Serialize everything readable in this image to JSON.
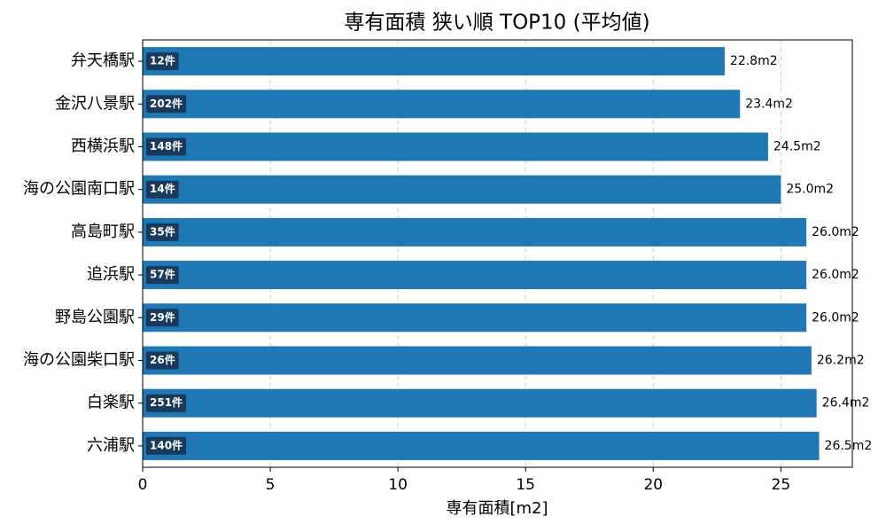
{
  "chart_data": {
    "type": "barh",
    "title": "専有面積 狭い順 TOP10 (平均値)",
    "x_label": "専有面積[m2]",
    "categories": [
      "弁天橋駅",
      "金沢八景駅",
      "西横浜駅",
      "海の公園南口駅",
      "高島町駅",
      "追浜駅",
      "野島公園駅",
      "海の公園柴口駅",
      "白楽駅",
      "六浦駅"
    ],
    "values": [
      22.8,
      23.4,
      24.5,
      25.0,
      26.0,
      26.0,
      26.0,
      26.2,
      26.4,
      26.5
    ],
    "value_labels": [
      "22.8m2",
      "23.4m2",
      "24.5m2",
      "25.0m2",
      "26.0m2",
      "26.0m2",
      "26.0m2",
      "26.2m2",
      "26.4m2",
      "26.5m2"
    ],
    "count_labels": [
      "12件",
      "202件",
      "148件",
      "14件",
      "35件",
      "57件",
      "29件",
      "26件",
      "251件",
      "140件"
    ],
    "color": "#1f77b4",
    "count_label_color": "#1a3a5c",
    "xlim": [
      0,
      27.8
    ],
    "xticks": [
      0,
      5,
      10,
      15,
      20,
      25
    ],
    "grid": true
  }
}
